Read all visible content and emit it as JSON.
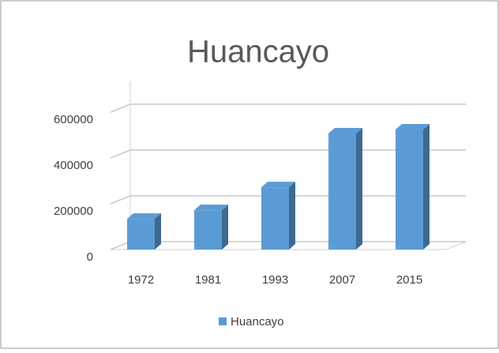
{
  "chart_data": {
    "type": "bar3d",
    "title": "Huancayo",
    "categories": [
      "1972",
      "1981",
      "1993",
      "2007",
      "2015"
    ],
    "series": [
      {
        "name": "Huancayo",
        "color": "#5b9bd5",
        "values": [
          134000,
          172000,
          272000,
          507000,
          524000
        ]
      }
    ],
    "ylim": [
      0,
      700000
    ],
    "yticks": [
      0,
      200000,
      400000,
      600000
    ],
    "grid": true,
    "legend": "bottom"
  }
}
